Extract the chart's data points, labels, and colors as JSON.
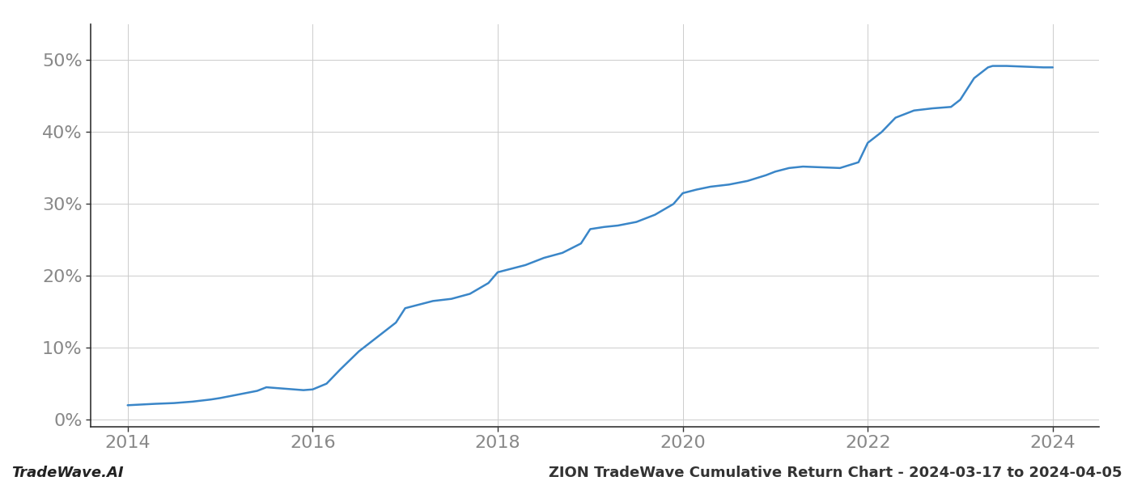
{
  "x_values": [
    2014.0,
    2014.15,
    2014.3,
    2014.5,
    2014.7,
    2014.9,
    2015.0,
    2015.2,
    2015.4,
    2015.5,
    2015.7,
    2015.9,
    2016.0,
    2016.15,
    2016.3,
    2016.5,
    2016.7,
    2016.9,
    2017.0,
    2017.15,
    2017.3,
    2017.5,
    2017.7,
    2017.9,
    2018.0,
    2018.15,
    2018.3,
    2018.5,
    2018.7,
    2018.9,
    2019.0,
    2019.15,
    2019.3,
    2019.5,
    2019.7,
    2019.9,
    2020.0,
    2020.15,
    2020.3,
    2020.5,
    2020.7,
    2020.9,
    2021.0,
    2021.15,
    2021.3,
    2021.5,
    2021.7,
    2021.9,
    2022.0,
    2022.15,
    2022.3,
    2022.5,
    2022.7,
    2022.9,
    2023.0,
    2023.15,
    2023.3,
    2023.35,
    2023.5,
    2023.7,
    2023.9,
    2024.0
  ],
  "y_values": [
    2.0,
    2.1,
    2.2,
    2.3,
    2.5,
    2.8,
    3.0,
    3.5,
    4.0,
    4.5,
    4.3,
    4.1,
    4.2,
    5.0,
    7.0,
    9.5,
    11.5,
    13.5,
    15.5,
    16.0,
    16.5,
    16.8,
    17.5,
    19.0,
    20.5,
    21.0,
    21.5,
    22.5,
    23.2,
    24.5,
    26.5,
    26.8,
    27.0,
    27.5,
    28.5,
    30.0,
    31.5,
    32.0,
    32.4,
    32.7,
    33.2,
    34.0,
    34.5,
    35.0,
    35.2,
    35.1,
    35.0,
    35.8,
    38.5,
    40.0,
    42.0,
    43.0,
    43.3,
    43.5,
    44.5,
    47.5,
    49.0,
    49.2,
    49.2,
    49.1,
    49.0,
    49.0
  ],
  "line_color": "#3a86c8",
  "line_width": 1.8,
  "background_color": "#ffffff",
  "grid_color": "#cccccc",
  "grid_linewidth": 0.7,
  "x_tick_labels": [
    "2014",
    "2016",
    "2018",
    "2020",
    "2022",
    "2024"
  ],
  "x_tick_positions": [
    2014,
    2016,
    2018,
    2020,
    2022,
    2024
  ],
  "y_tick_labels": [
    "0%",
    "10%",
    "20%",
    "30%",
    "40%",
    "50%"
  ],
  "y_tick_positions": [
    0,
    10,
    20,
    30,
    40,
    50
  ],
  "ylim": [
    -1,
    55
  ],
  "xlim": [
    2013.6,
    2024.5
  ],
  "footer_left": "TradeWave.AI",
  "footer_right": "ZION TradeWave Cumulative Return Chart - 2024-03-17 to 2024-04-05",
  "footer_fontsize": 13,
  "tick_fontsize": 16,
  "spine_left_color": "#333333",
  "spine_bottom_color": "#333333",
  "tick_color": "#888888",
  "label_color": "#888888"
}
